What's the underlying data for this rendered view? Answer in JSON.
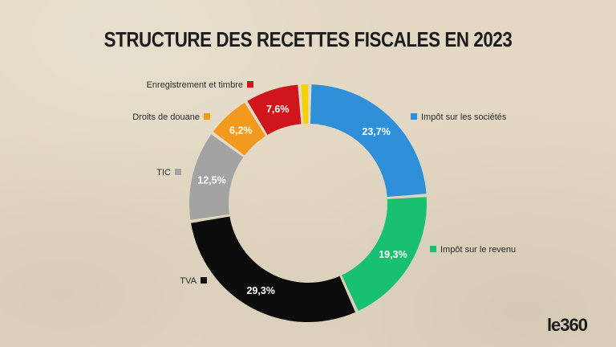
{
  "title": "STRUCTURE DES RECETTES FISCALES EN 2023",
  "logo": "le360",
  "chart_data": {
    "type": "pie",
    "variant": "donut",
    "title": "STRUCTURE DES RECETTES FISCALES EN 2023",
    "series": [
      {
        "name": "Impôt sur les sociétés",
        "value": 23.7,
        "label": "23,7%",
        "color": "#2f8fd8",
        "legend_side": "right"
      },
      {
        "name": "Impôt sur le revenu",
        "value": 19.3,
        "label": "19,3%",
        "color": "#18c172",
        "legend_side": "right"
      },
      {
        "name": "TVA",
        "value": 29.3,
        "label": "29,3%",
        "color": "#0c0c0c",
        "legend_side": "left"
      },
      {
        "name": "TIC",
        "value": 12.5,
        "label": "12,5%",
        "color": "#a3a3a3",
        "legend_side": "left"
      },
      {
        "name": "Droits de douane",
        "value": 6.2,
        "label": "6,2%",
        "color": "#f29a20",
        "legend_side": "left"
      },
      {
        "name": "Enregistrement et timbre",
        "value": 7.6,
        "label": "7,6%",
        "color": "#d0161d",
        "legend_side": "left"
      },
      {
        "name": "",
        "value": 1.4,
        "label": "",
        "color": "#f5d100",
        "legend_side": "none"
      }
    ]
  }
}
